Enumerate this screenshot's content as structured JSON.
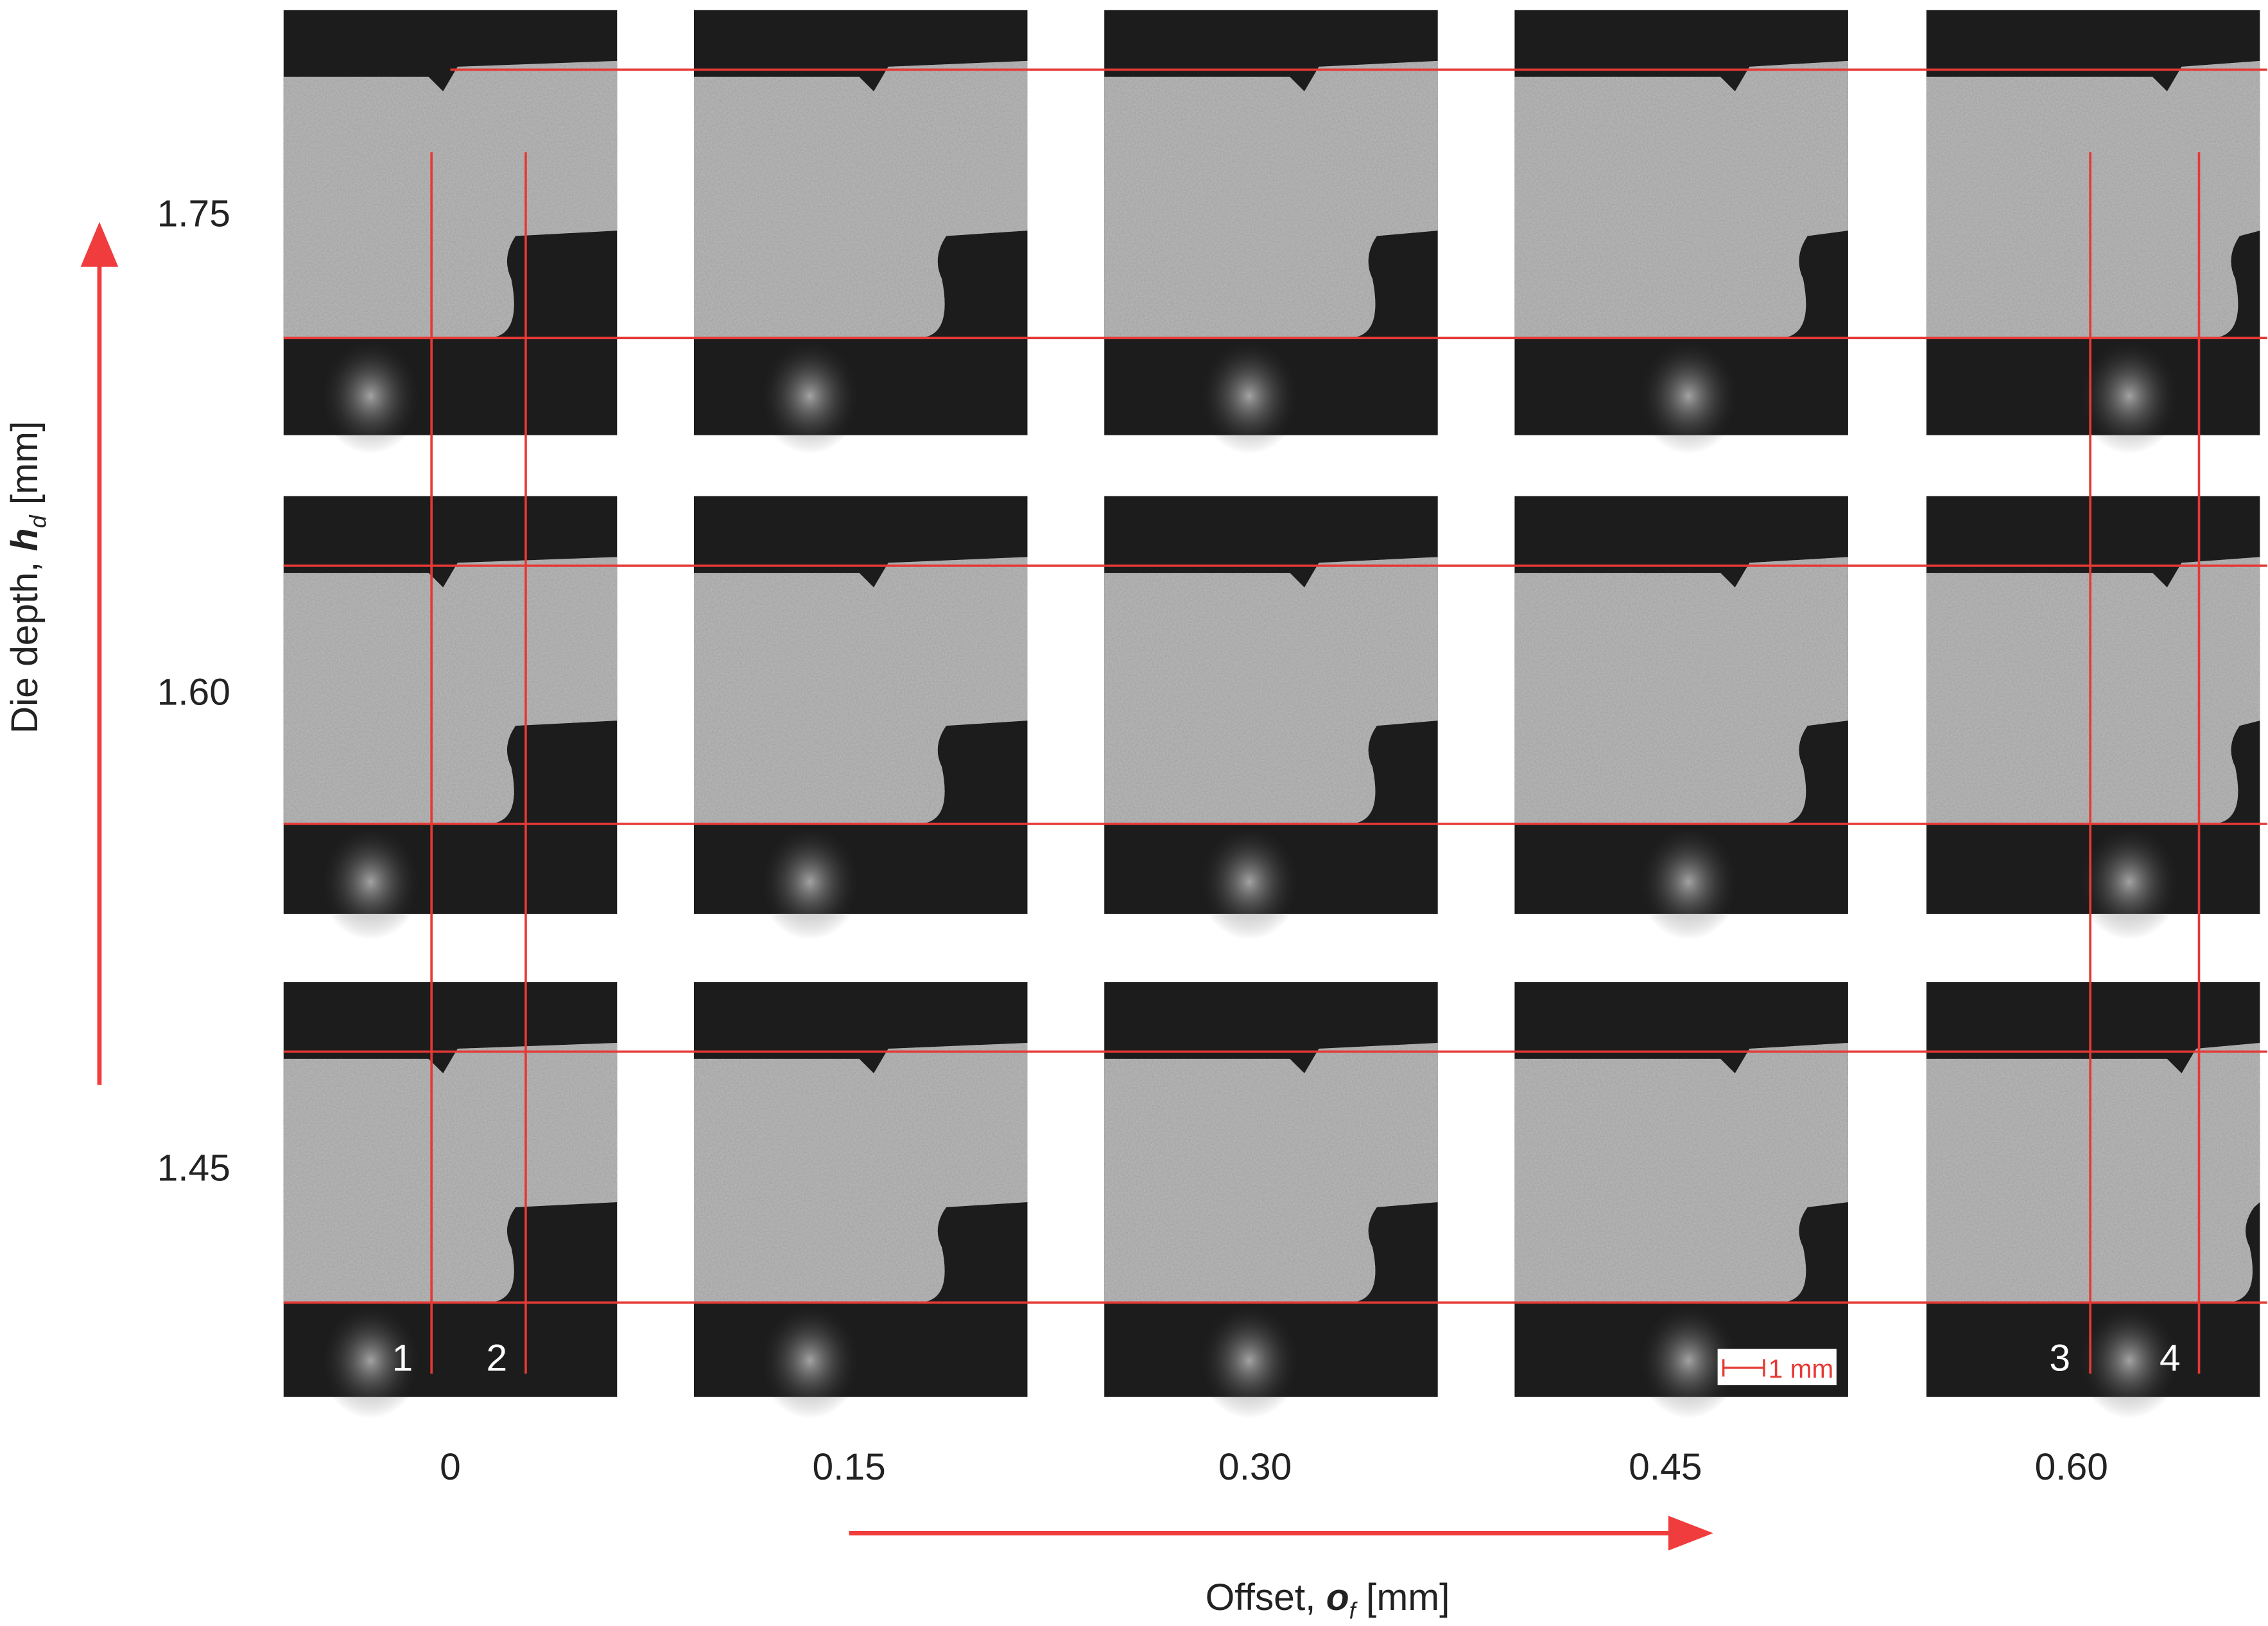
{
  "y_axis": {
    "label_prefix": "Die depth, ",
    "symbol": "h",
    "subscript": "d",
    "unit": " [mm]",
    "values": [
      "1.75",
      "1.60",
      "1.45"
    ]
  },
  "x_axis": {
    "label_prefix": "Offset, ",
    "symbol": "o",
    "subscript": "f",
    "unit": " [mm]",
    "values": [
      "0",
      "0.15",
      "0.30",
      "0.45",
      "0.60"
    ]
  },
  "line_labels": [
    "1",
    "2",
    "3",
    "4"
  ],
  "scale_bar": "1 mm"
}
